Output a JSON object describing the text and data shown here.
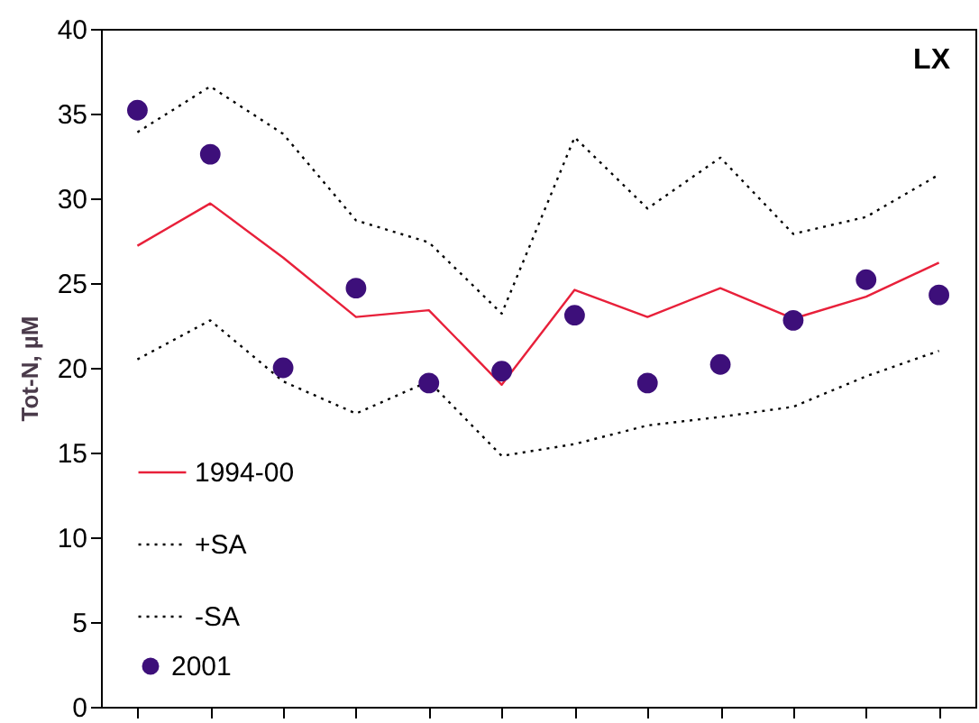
{
  "chart_data": {
    "type": "line",
    "title": "LX",
    "ylabel": "Tot-N, µM",
    "categories": [
      null,
      null,
      null,
      null,
      null,
      null,
      null,
      null,
      null,
      null,
      null,
      null
    ],
    "ylim": [
      0,
      40
    ],
    "yticks": [
      0,
      5,
      10,
      15,
      20,
      25,
      30,
      35,
      40
    ],
    "grid": false,
    "legend": "bottom left",
    "marker": "none",
    "series": [
      {
        "name": "1994-00",
        "color": "#e8203a",
        "line_style": "solid",
        "values": [
          27.2,
          29.7,
          26.5,
          23.0,
          23.4,
          19.0,
          24.6,
          23.0,
          24.7,
          22.9,
          24.2,
          26.2
        ]
      },
      {
        "name": "+SA",
        "color": "#000000",
        "line_style": "dotted",
        "values": [
          33.9,
          36.6,
          33.8,
          28.7,
          27.4,
          23.2,
          33.6,
          29.4,
          32.4,
          27.9,
          28.9,
          31.4
        ]
      },
      {
        "name": "-SA",
        "color": "#000000",
        "line_style": "dotted",
        "values": [
          20.5,
          22.8,
          19.2,
          17.3,
          19.2,
          14.8,
          15.5,
          16.6,
          17.1,
          17.7,
          19.5,
          21.0
        ]
      },
      {
        "name": "2001",
        "type": "scatter",
        "marker": "circle",
        "color": "#3d0f7a",
        "values": [
          35.2,
          32.6,
          20.0,
          24.7,
          19.1,
          19.8,
          23.1,
          19.1,
          20.2,
          22.8,
          25.2,
          24.3
        ]
      }
    ]
  }
}
